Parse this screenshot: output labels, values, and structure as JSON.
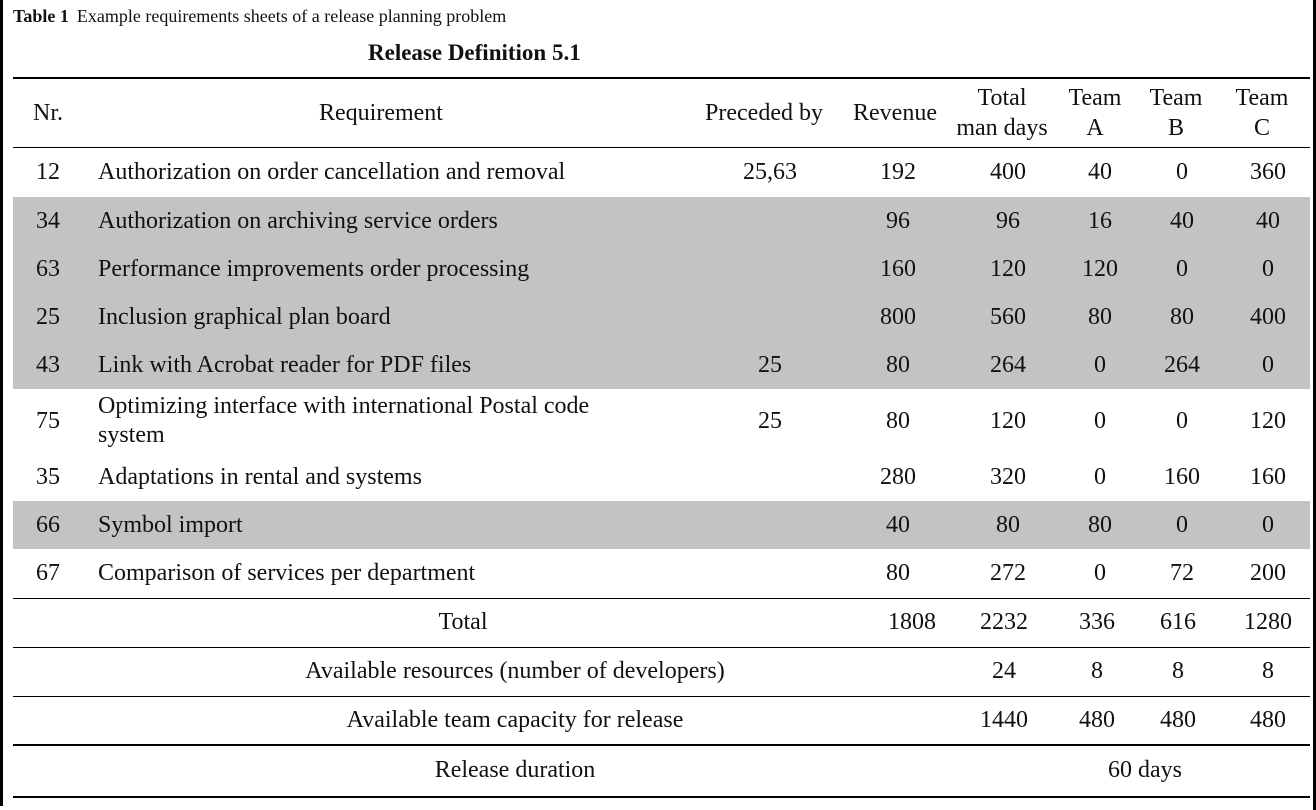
{
  "caption": {
    "label": "Table 1",
    "text": "Example requirements sheets of a release planning problem"
  },
  "title": "Release Definition 5.1",
  "columns": {
    "nr": "Nr.",
    "requirement": "Requirement",
    "preceded_by": "Preceded by",
    "revenue": "Revenue",
    "total_man_days_1": "Total",
    "total_man_days_2": "man days",
    "team_a_1": "Team",
    "team_a_2": "A",
    "team_b_1": "Team",
    "team_b_2": "B",
    "team_c_1": "Team",
    "team_c_2": "C"
  },
  "rows": [
    {
      "nr": "12",
      "req": "Authorization on order cancellation and removal",
      "pre": "25,63",
      "rev": "192",
      "total": "400",
      "a": "40",
      "b": "0",
      "c": "360",
      "shaded": false
    },
    {
      "nr": "34",
      "req": "Authorization on archiving service orders",
      "pre": "",
      "rev": "96",
      "total": "96",
      "a": "16",
      "b": "40",
      "c": "40",
      "shaded": true
    },
    {
      "nr": "63",
      "req": "Performance improvements order processing",
      "pre": "",
      "rev": "160",
      "total": "120",
      "a": "120",
      "b": "0",
      "c": "0",
      "shaded": true
    },
    {
      "nr": "25",
      "req": "Inclusion graphical plan board",
      "pre": "",
      "rev": "800",
      "total": "560",
      "a": "80",
      "b": "80",
      "c": "400",
      "shaded": true
    },
    {
      "nr": "43",
      "req": "Link with Acrobat reader for PDF files",
      "pre": "25",
      "rev": "80",
      "total": "264",
      "a": "0",
      "b": "264",
      "c": "0",
      "shaded": true
    },
    {
      "nr": "75",
      "req": "Optimizing interface with international Postal code",
      "req2": "system",
      "pre": "25",
      "rev": "80",
      "total": "120",
      "a": "0",
      "b": "0",
      "c": "120",
      "shaded": false
    },
    {
      "nr": "35",
      "req": "Adaptations in rental and systems",
      "pre": "",
      "rev": "280",
      "total": "320",
      "a": "0",
      "b": "160",
      "c": "160",
      "shaded": false
    },
    {
      "nr": "66",
      "req": "Symbol import",
      "pre": "",
      "rev": "40",
      "total": "80",
      "a": "80",
      "b": "0",
      "c": "0",
      "shaded": true
    },
    {
      "nr": "67",
      "req": "Comparison of services per department",
      "pre": "",
      "rev": "80",
      "total": "272",
      "a": "0",
      "b": "72",
      "c": "200",
      "shaded": false
    }
  ],
  "total_row": {
    "label": "Total",
    "rev": "1808",
    "total": "2232",
    "a": "336",
    "b": "616",
    "c": "1280"
  },
  "resources_row": {
    "label": "Available resources (number of developers)",
    "total": "24",
    "a": "8",
    "b": "8",
    "c": "8"
  },
  "capacity_row": {
    "label": "Available team capacity for release",
    "total": "1440",
    "a": "480",
    "b": "480",
    "c": "480"
  },
  "duration_row": {
    "label": "Release duration",
    "value": "60 days"
  }
}
